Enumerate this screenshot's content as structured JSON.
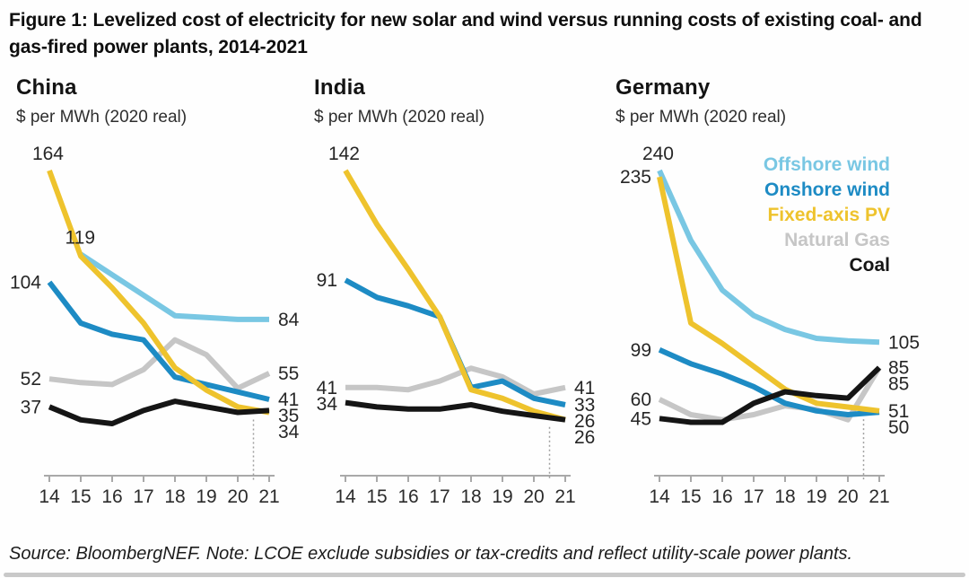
{
  "title": "Figure 1: Levelized cost of electricity for new solar and wind versus running costs of existing coal- and gas-fired power plants, 2014-2021",
  "source_note": "Source: BloombergNEF. Note: LCOE exclude subsidies or tax-credits and reflect utility-scale power plants.",
  "legend": [
    {
      "key": "offshore",
      "label": "Offshore wind",
      "color": "#79c7e3"
    },
    {
      "key": "onshore",
      "label": "Onshore wind",
      "color": "#1d8bc4"
    },
    {
      "key": "pv",
      "label": "Fixed-axis PV",
      "color": "#eec32d"
    },
    {
      "key": "gas",
      "label": "Natural Gas",
      "color": "#c6c6c6"
    },
    {
      "key": "coal",
      "label": "Coal",
      "color": "#151515"
    }
  ],
  "chart_data": {
    "type": "line",
    "unit_label": "$ per MWh (2020 real)",
    "x_ticks": [
      "14",
      "15",
      "16",
      "17",
      "18",
      "19",
      "20",
      "21"
    ],
    "divider_between_years": [
      "20",
      "21"
    ],
    "panels": [
      {
        "name": "China",
        "series": [
          {
            "key": "gas",
            "name": "Natural Gas",
            "values": [
              52,
              50,
              49,
              57,
              73,
              65,
              47,
              55
            ],
            "label_start": "52",
            "label_end": "55"
          },
          {
            "key": "offshore",
            "name": "Offshore wind",
            "values": [
              null,
              119,
              108,
              97,
              86,
              85,
              84,
              84
            ],
            "label_start": "119",
            "label_end": "84"
          },
          {
            "key": "onshore",
            "name": "Onshore wind",
            "values": [
              104,
              82,
              76,
              73,
              53,
              49,
              45,
              41
            ],
            "label_start": "104",
            "label_end": "41"
          },
          {
            "key": "pv",
            "name": "Fixed-axis PV",
            "values": [
              164,
              118,
              101,
              82,
              58,
              46,
              37,
              34
            ],
            "label_start": "164",
            "label_end": "34"
          },
          {
            "key": "coal",
            "name": "Coal",
            "values": [
              37,
              30,
              28,
              35,
              40,
              37,
              34,
              35
            ],
            "label_start": "37",
            "label_end": "35"
          }
        ]
      },
      {
        "name": "India",
        "series": [
          {
            "key": "gas",
            "name": "Natural Gas",
            "values": [
              41,
              41,
              40,
              44,
              50,
              46,
              38,
              41
            ],
            "label_start": "41",
            "label_end": "41"
          },
          {
            "key": "onshore",
            "name": "Onshore wind",
            "values": [
              91,
              83,
              79,
              74,
              41,
              44,
              36,
              33
            ],
            "label_start": "91",
            "label_end": "33"
          },
          {
            "key": "pv",
            "name": "Fixed-axis PV",
            "values": [
              142,
              117,
              96,
              74,
              40,
              36,
              30,
              26
            ],
            "label_start": "142",
            "label_end": "26"
          },
          {
            "key": "coal",
            "name": "Coal",
            "values": [
              34,
              32,
              31,
              31,
              33,
              30,
              28,
              26
            ],
            "label_start": "34",
            "label_end": "26"
          }
        ]
      },
      {
        "name": "Germany",
        "series": [
          {
            "key": "gas",
            "name": "Natural Gas",
            "values": [
              60,
              48,
              44,
              48,
              55,
              52,
              44,
              85
            ],
            "label_start": "60",
            "label_end": "85"
          },
          {
            "key": "offshore",
            "name": "Offshore wind",
            "values": [
              240,
              185,
              146,
              126,
              115,
              108,
              106,
              105
            ],
            "label_start": "240",
            "label_end": "105"
          },
          {
            "key": "onshore",
            "name": "Onshore wind",
            "values": [
              99,
              88,
              80,
              70,
              57,
              51,
              48,
              50
            ],
            "label_start": "99",
            "label_end": "50"
          },
          {
            "key": "pv",
            "name": "Fixed-axis PV",
            "values": [
              235,
              120,
              104,
              86,
              68,
              57,
              54,
              51
            ],
            "label_start": "235",
            "label_end": "51"
          },
          {
            "key": "coal",
            "name": "Coal",
            "values": [
              45,
              42,
              42,
              57,
              66,
              63,
              61,
              85
            ],
            "label_start": "45",
            "label_end": "85"
          }
        ]
      }
    ]
  }
}
